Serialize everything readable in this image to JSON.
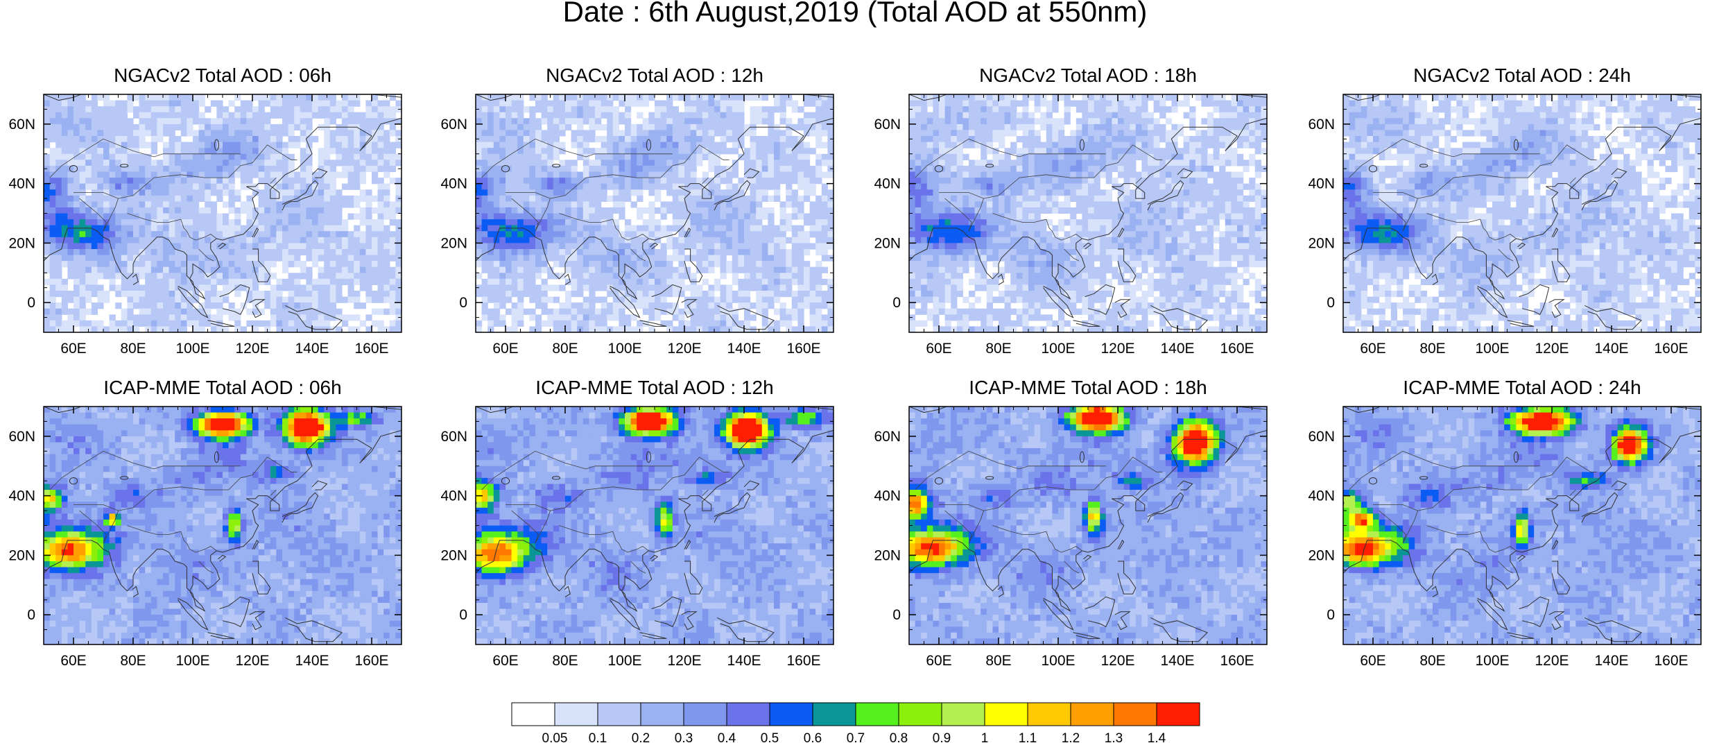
{
  "figure": {
    "title": "Date : 6th August,2019 (Total AOD at 550nm)"
  },
  "map": {
    "lon_range": [
      50,
      170
    ],
    "lat_range": [
      -10,
      70
    ],
    "lon_ticks": [
      "60E",
      "80E",
      "100E",
      "120E",
      "140E",
      "160E"
    ],
    "lon_tick_values": [
      60,
      80,
      100,
      120,
      140,
      160
    ],
    "lat_ticks": [
      "0",
      "20N",
      "40N",
      "60N"
    ],
    "lat_tick_values": [
      0,
      20,
      40,
      60
    ]
  },
  "panels": [
    {
      "title": "NGACv2 Total AOD : 06h",
      "model": "NGACv2"
    },
    {
      "title": "NGACv2 Total AOD : 12h",
      "model": "NGACv2"
    },
    {
      "title": "NGACv2 Total AOD : 18h",
      "model": "NGACv2"
    },
    {
      "title": "NGACv2 Total AOD : 24h",
      "model": "NGACv2"
    },
    {
      "title": "ICAP-MME Total AOD : 06h",
      "model": "ICAP-MME"
    },
    {
      "title": "ICAP-MME Total AOD : 12h",
      "model": "ICAP-MME"
    },
    {
      "title": "ICAP-MME Total AOD : 18h",
      "model": "ICAP-MME"
    },
    {
      "title": "ICAP-MME Total AOD : 24h",
      "model": "ICAP-MME"
    }
  ],
  "colorbar": {
    "labels": [
      "0.05",
      "0.1",
      "0.2",
      "0.3",
      "0.4",
      "0.5",
      "0.6",
      "0.7",
      "0.8",
      "0.9",
      "1",
      "1.1",
      "1.2",
      "1.3",
      "1.4"
    ],
    "colors": [
      "#ffffff",
      "#d8e2fb",
      "#b8c8f6",
      "#9ab1f2",
      "#7f98ee",
      "#6a73ea",
      "#0a5cf5",
      "#0a9696",
      "#55f01e",
      "#8cf00a",
      "#b4f050",
      "#ffff00",
      "#ffc800",
      "#ffa000",
      "#ff7800",
      "#ff1e00"
    ]
  }
}
